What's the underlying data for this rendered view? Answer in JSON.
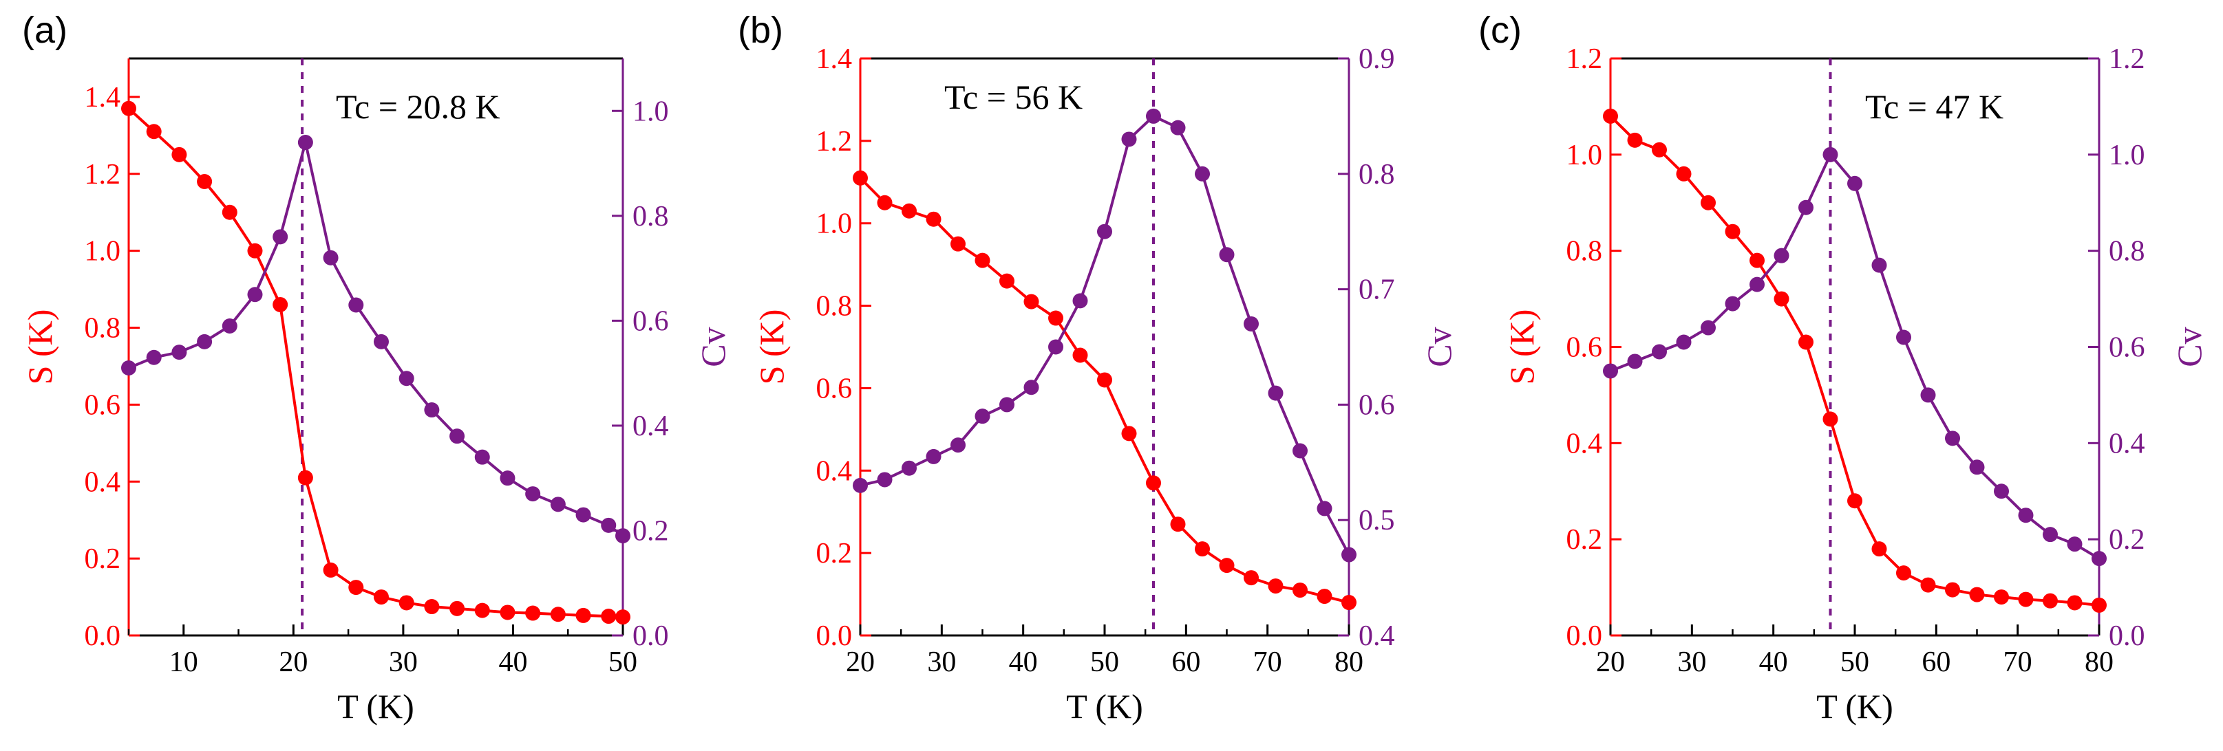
{
  "colors": {
    "s_series": "#ff0000",
    "cv_series": "#7a1a88",
    "axis": "#000000"
  },
  "chart_data": [
    {
      "type": "line",
      "panel_label": "(a)",
      "annotation": "Tc = 20.8 K",
      "tc": 20.8,
      "xlabel": "T (K)",
      "ylabel": "S (K)",
      "y2label": "Cv",
      "xlim": [
        5,
        50
      ],
      "ylim": [
        0,
        1.5
      ],
      "y2lim": [
        0,
        1.1
      ],
      "xticks": [
        10,
        20,
        30,
        40,
        50
      ],
      "xtick_labels": [
        "10",
        "20",
        "30",
        "40",
        "50"
      ],
      "yticks": [
        0.0,
        0.2,
        0.4,
        0.6,
        0.8,
        1.0,
        1.2,
        1.4
      ],
      "ytick_labels": [
        "0.0",
        "0.2",
        "0.4",
        "0.6",
        "0.8",
        "1.0",
        "1.2",
        "1.4"
      ],
      "y2ticks": [
        0.0,
        0.2,
        0.4,
        0.6,
        0.8,
        1.0
      ],
      "y2tick_labels": [
        "0.0",
        "0.2",
        "0.4",
        "0.6",
        "0.8",
        "1.0"
      ],
      "series": [
        {
          "name": "S",
          "axis": "left",
          "x": [
            5.0,
            7.3,
            9.6,
            11.9,
            14.2,
            16.5,
            18.8,
            21.1,
            23.4,
            25.7,
            28.0,
            30.3,
            32.6,
            34.9,
            37.2,
            39.5,
            41.8,
            44.1,
            46.4,
            48.7,
            50.0
          ],
          "values": [
            1.37,
            1.31,
            1.25,
            1.18,
            1.1,
            1.0,
            0.86,
            0.41,
            0.17,
            0.125,
            0.1,
            0.085,
            0.075,
            0.07,
            0.065,
            0.06,
            0.058,
            0.055,
            0.052,
            0.05,
            0.048
          ]
        },
        {
          "name": "Cv",
          "axis": "right",
          "x": [
            5.0,
            7.3,
            9.6,
            11.9,
            14.2,
            16.5,
            18.8,
            21.1,
            23.4,
            25.7,
            28.0,
            30.3,
            32.6,
            34.9,
            37.2,
            39.5,
            41.8,
            44.1,
            46.4,
            48.7,
            50.0
          ],
          "values": [
            0.51,
            0.53,
            0.54,
            0.56,
            0.59,
            0.65,
            0.76,
            0.94,
            0.72,
            0.63,
            0.56,
            0.49,
            0.43,
            0.38,
            0.34,
            0.3,
            0.27,
            0.25,
            0.23,
            0.21,
            0.19
          ]
        }
      ]
    },
    {
      "type": "line",
      "panel_label": "(b)",
      "annotation": "Tc = 56 K",
      "tc": 56,
      "xlabel": "T (K)",
      "ylabel": "S (K)",
      "y2label": "Cv",
      "xlim": [
        20,
        80
      ],
      "ylim": [
        0,
        1.4
      ],
      "y2lim": [
        0.4,
        0.9
      ],
      "xticks": [
        20,
        30,
        40,
        50,
        60,
        70,
        80
      ],
      "xtick_labels": [
        "20",
        "30",
        "40",
        "50",
        "60",
        "70",
        "80"
      ],
      "yticks": [
        0.0,
        0.2,
        0.4,
        0.6,
        0.8,
        1.0,
        1.2,
        1.4
      ],
      "ytick_labels": [
        "0.0",
        "0.2",
        "0.4",
        "0.6",
        "0.8",
        "1.0",
        "1.2",
        "1.4"
      ],
      "y2ticks": [
        0.4,
        0.5,
        0.6,
        0.7,
        0.8,
        0.9
      ],
      "y2tick_labels": [
        "0.4",
        "0.5",
        "0.6",
        "0.7",
        "0.8",
        "0.9"
      ],
      "series": [
        {
          "name": "S",
          "axis": "left",
          "x": [
            20,
            23,
            26,
            29,
            32,
            35,
            38,
            41,
            44,
            47,
            50,
            53,
            56,
            59,
            62,
            65,
            68,
            71,
            74,
            77,
            80
          ],
          "values": [
            1.11,
            1.05,
            1.03,
            1.01,
            0.95,
            0.91,
            0.86,
            0.81,
            0.77,
            0.68,
            0.62,
            0.49,
            0.37,
            0.27,
            0.21,
            0.17,
            0.14,
            0.12,
            0.11,
            0.095,
            0.08
          ]
        },
        {
          "name": "Cv",
          "axis": "right",
          "x": [
            20,
            23,
            26,
            29,
            32,
            35,
            38,
            41,
            44,
            47,
            50,
            53,
            56,
            59,
            62,
            65,
            68,
            71,
            74,
            77,
            80
          ],
          "values": [
            0.53,
            0.535,
            0.545,
            0.555,
            0.565,
            0.59,
            0.6,
            0.615,
            0.65,
            0.69,
            0.75,
            0.83,
            0.85,
            0.84,
            0.8,
            0.73,
            0.67,
            0.61,
            0.56,
            0.51,
            0.47
          ]
        }
      ]
    },
    {
      "type": "line",
      "panel_label": "(c)",
      "annotation": "Tc = 47 K",
      "tc": 47,
      "xlabel": "T (K)",
      "ylabel": "S (K)",
      "y2label": "Cv",
      "xlim": [
        20,
        80
      ],
      "ylim": [
        0,
        1.2
      ],
      "y2lim": [
        0,
        1.2
      ],
      "xticks": [
        20,
        30,
        40,
        50,
        60,
        70,
        80
      ],
      "xtick_labels": [
        "20",
        "30",
        "40",
        "50",
        "60",
        "70",
        "80"
      ],
      "yticks": [
        0.0,
        0.2,
        0.4,
        0.6,
        0.8,
        1.0,
        1.2
      ],
      "ytick_labels": [
        "0.0",
        "0.2",
        "0.4",
        "0.6",
        "0.8",
        "1.0",
        "1.2"
      ],
      "y2ticks": [
        0.0,
        0.2,
        0.4,
        0.6,
        0.8,
        1.0,
        1.2
      ],
      "y2tick_labels": [
        "0.0",
        "0.2",
        "0.4",
        "0.6",
        "0.8",
        "1.0",
        "1.2"
      ],
      "series": [
        {
          "name": "S",
          "axis": "left",
          "x": [
            20,
            23,
            26,
            29,
            32,
            35,
            38,
            41,
            44,
            47,
            50,
            53,
            56,
            59,
            62,
            65,
            68,
            71,
            74,
            77,
            80
          ],
          "values": [
            1.08,
            1.03,
            1.01,
            0.96,
            0.9,
            0.84,
            0.78,
            0.7,
            0.61,
            0.45,
            0.28,
            0.18,
            0.13,
            0.105,
            0.095,
            0.085,
            0.08,
            0.075,
            0.072,
            0.068,
            0.063
          ]
        },
        {
          "name": "Cv",
          "axis": "right",
          "x": [
            20,
            23,
            26,
            29,
            32,
            35,
            38,
            41,
            44,
            47,
            50,
            53,
            56,
            59,
            62,
            65,
            68,
            71,
            74,
            77,
            80
          ],
          "values": [
            0.55,
            0.57,
            0.59,
            0.61,
            0.64,
            0.69,
            0.73,
            0.79,
            0.89,
            1.0,
            0.94,
            0.77,
            0.62,
            0.5,
            0.41,
            0.35,
            0.3,
            0.25,
            0.21,
            0.19,
            0.16
          ]
        }
      ]
    }
  ]
}
